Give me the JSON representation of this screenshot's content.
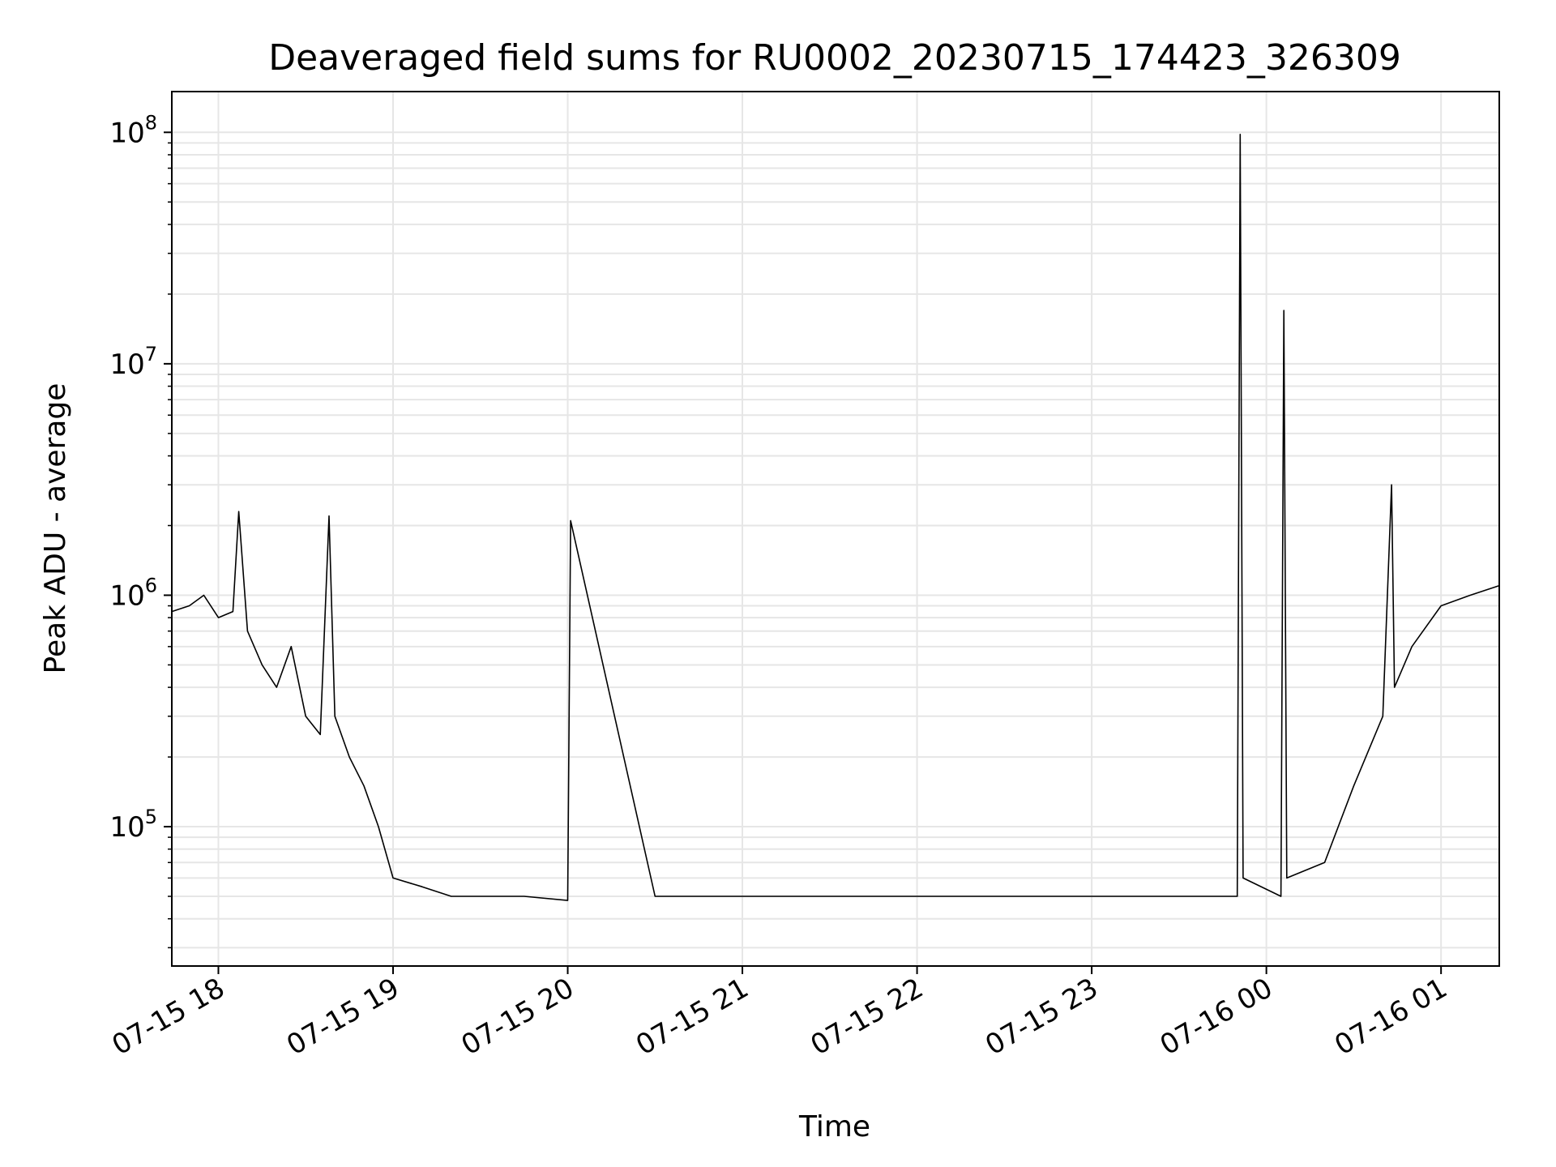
{
  "chart_data": {
    "type": "line",
    "title": "Deaveraged field sums for RU0002_20230715_174423_326309",
    "xlabel": "Time",
    "ylabel": "Peak ADU - average",
    "x_scale": "time",
    "y_scale": "log",
    "xlim": [
      "2023-07-15 17:44",
      "2023-07-16 01:20"
    ],
    "ylim": [
      25000,
      150000000
    ],
    "grid": true,
    "x_ticks": [
      "07-15 18",
      "07-15 19",
      "07-15 20",
      "07-15 21",
      "07-15 22",
      "07-15 23",
      "07-16 00",
      "07-16 01"
    ],
    "y_ticks": [
      {
        "base": "10",
        "exp": "5",
        "value": 100000
      },
      {
        "base": "10",
        "exp": "6",
        "value": 1000000
      },
      {
        "base": "10",
        "exp": "7",
        "value": 10000000
      },
      {
        "base": "10",
        "exp": "8",
        "value": 100000000
      }
    ],
    "line_color": "#000000",
    "series": [
      {
        "x": [
          "2023-07-15 17:44",
          "2023-07-15 17:50",
          "2023-07-15 17:55",
          "2023-07-15 18:00",
          "2023-07-15 18:05",
          "2023-07-15 18:07",
          "2023-07-15 18:10",
          "2023-07-15 18:15",
          "2023-07-15 18:20",
          "2023-07-15 18:25",
          "2023-07-15 18:30",
          "2023-07-15 18:35",
          "2023-07-15 18:38",
          "2023-07-15 18:40",
          "2023-07-15 18:45",
          "2023-07-15 18:50",
          "2023-07-15 18:55",
          "2023-07-15 19:00",
          "2023-07-15 19:10",
          "2023-07-15 19:20",
          "2023-07-15 19:30",
          "2023-07-15 19:45",
          "2023-07-15 20:00",
          "2023-07-15 20:01",
          "2023-07-15 20:30",
          "2023-07-15 21:00",
          "2023-07-15 21:30",
          "2023-07-15 22:00",
          "2023-07-15 22:30",
          "2023-07-15 23:00",
          "2023-07-15 23:30",
          "2023-07-15 23:50",
          "2023-07-15 23:51",
          "2023-07-15 23:52",
          "2023-07-16 00:05",
          "2023-07-16 00:06",
          "2023-07-16 00:07",
          "2023-07-16 00:20",
          "2023-07-16 00:30",
          "2023-07-16 00:40",
          "2023-07-16 00:43",
          "2023-07-16 00:44",
          "2023-07-16 00:50",
          "2023-07-16 01:00",
          "2023-07-16 01:10",
          "2023-07-16 01:20"
        ],
        "y": [
          850000,
          900000,
          1000000,
          800000,
          850000,
          2300000,
          700000,
          500000,
          400000,
          600000,
          300000,
          250000,
          2200000,
          300000,
          200000,
          150000,
          100000,
          60000,
          55000,
          50000,
          50000,
          50000,
          48000,
          2100000,
          50000,
          50000,
          50000,
          50000,
          50000,
          50000,
          50000,
          50000,
          98000000,
          60000,
          50000,
          17000000,
          60000,
          70000,
          150000,
          300000,
          3000000,
          400000,
          600000,
          900000,
          1000000,
          1100000
        ]
      }
    ]
  }
}
